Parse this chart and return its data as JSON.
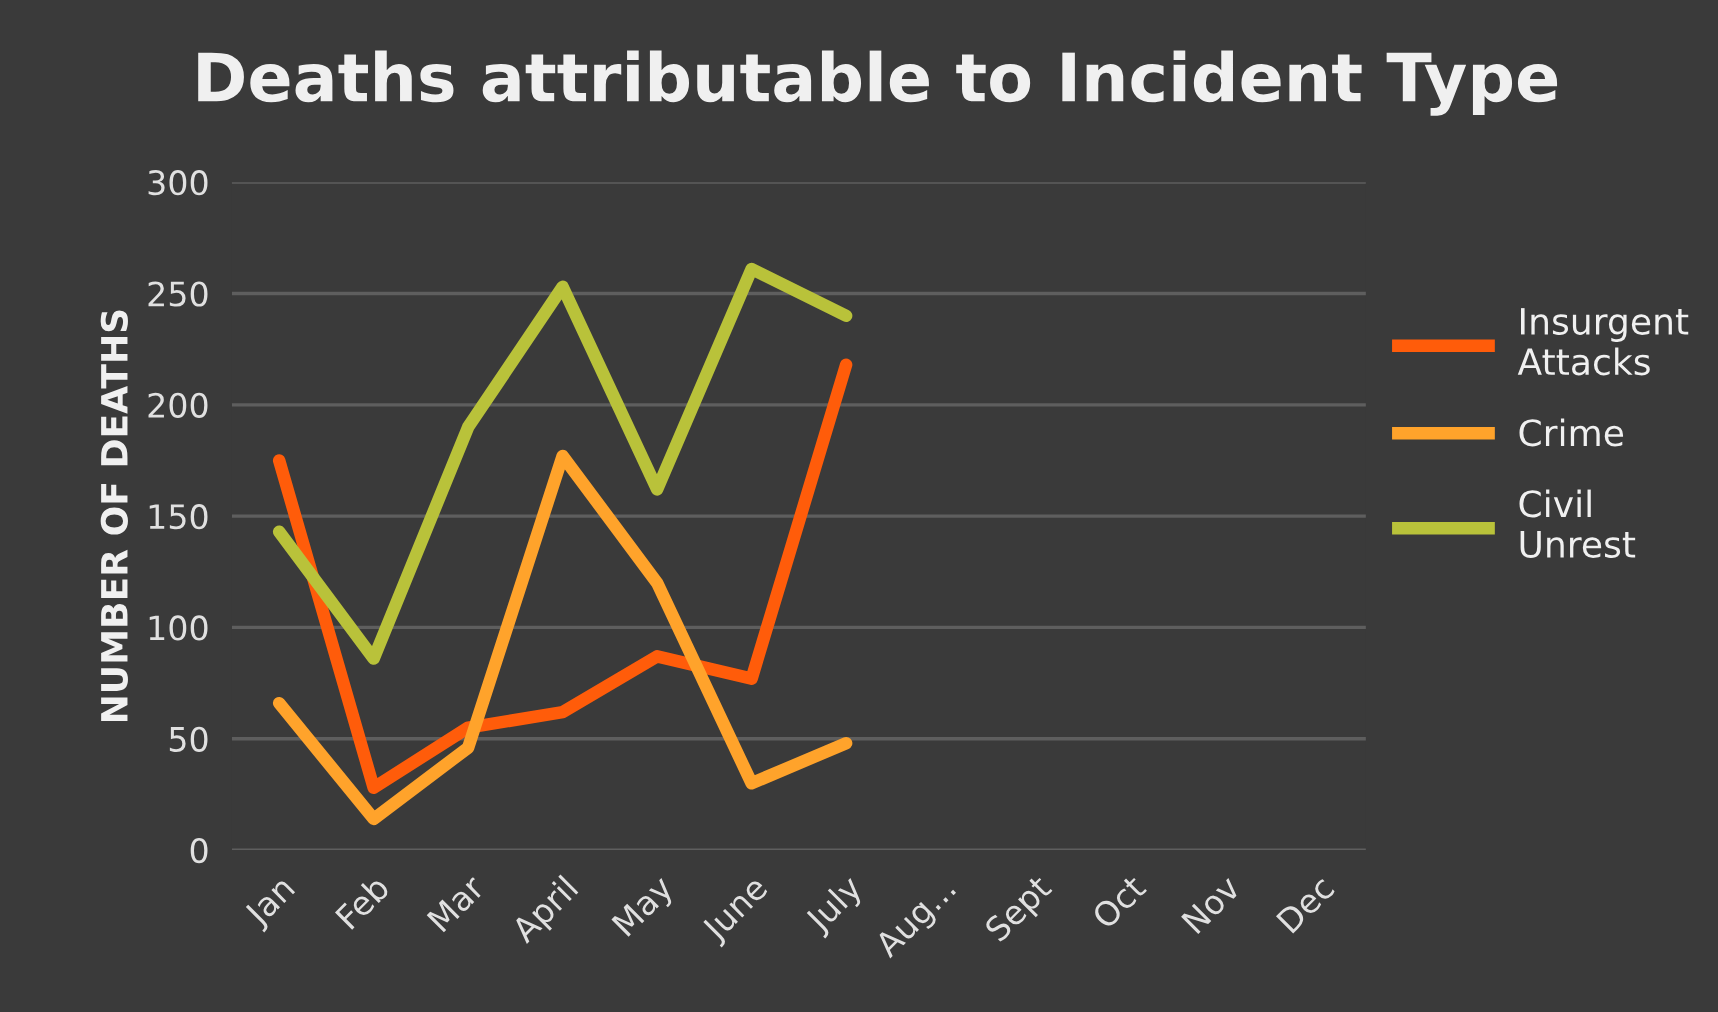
{
  "chart_data": {
    "type": "line",
    "title": "Deaths attributable to Incident Type",
    "ylabel": "NUMBER OF DEATHS",
    "categories": [
      "Jan",
      "Feb",
      "Mar",
      "April",
      "May",
      "June",
      "July",
      "Aug...",
      "Sept",
      "Oct",
      "Nov",
      "Dec"
    ],
    "series": [
      {
        "name": "Insurgent Attacks",
        "color": "#ff5c0a",
        "values": [
          175,
          28,
          55,
          62,
          87,
          77,
          218,
          null,
          null,
          null,
          null,
          null
        ]
      },
      {
        "name": "Crime",
        "color": "#ffa32b",
        "values": [
          66,
          14,
          46,
          177,
          120,
          30,
          48,
          null,
          null,
          null,
          null,
          null
        ]
      },
      {
        "name": "Civil Unrest",
        "color": "#b9c23a",
        "values": [
          143,
          86,
          190,
          253,
          162,
          261,
          240,
          null,
          null,
          null,
          null,
          null
        ]
      }
    ],
    "ylim": [
      0,
      300
    ],
    "yticks": [
      0,
      50,
      100,
      150,
      200,
      250,
      300
    ],
    "grid": "y",
    "legend": "right",
    "marker": "none",
    "line_style": "solid"
  }
}
